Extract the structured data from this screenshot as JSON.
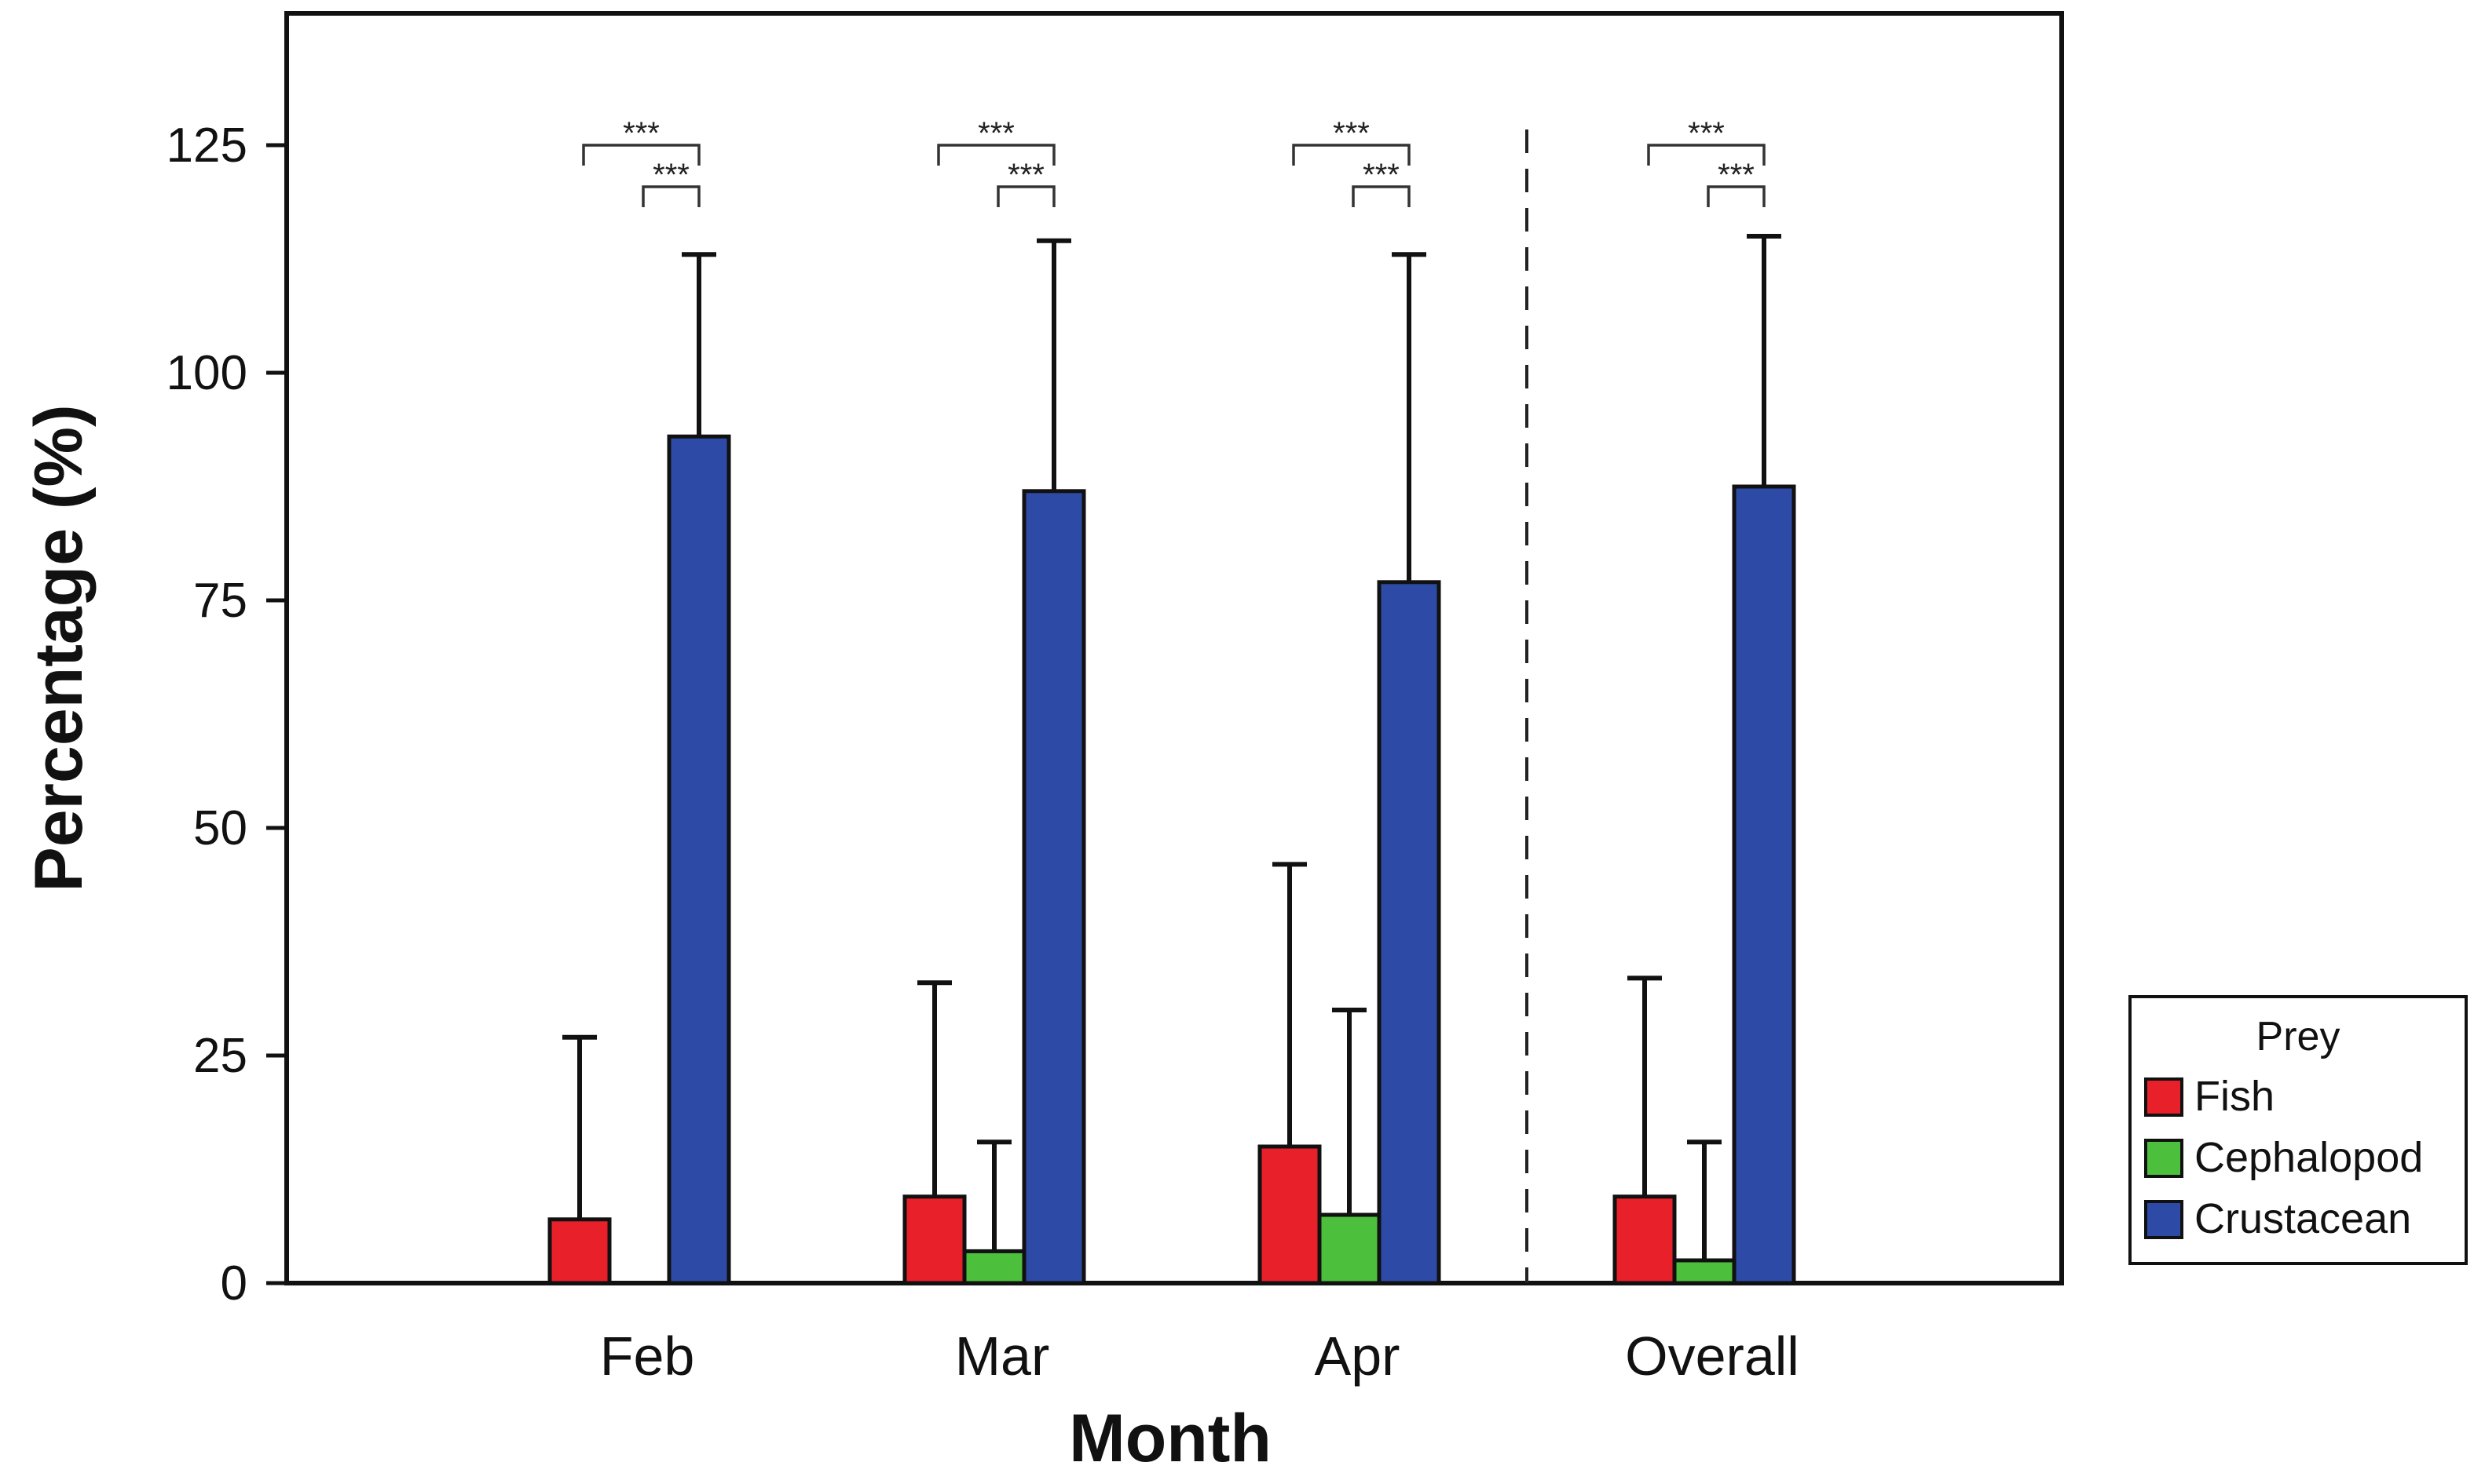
{
  "chart_data": {
    "type": "bar",
    "xlabel": "Month",
    "ylabel": "Percentage (%)",
    "ylim": [
      0,
      140
    ],
    "yticks": [
      "0",
      "25",
      "50",
      "75",
      "100",
      "125"
    ],
    "categories": [
      "Feb",
      "Mar",
      "Apr",
      "Overall"
    ],
    "series": [
      {
        "name": "Fish",
        "color": "#e8202a",
        "values": [
          7,
          9.5,
          15,
          9.5
        ],
        "error": [
          20,
          23.5,
          31,
          24
        ]
      },
      {
        "name": "Cephalopod",
        "color": "#4cc03c",
        "values": [
          0,
          3.5,
          7.5,
          2.5
        ],
        "error": [
          0,
          12,
          22.5,
          13
        ]
      },
      {
        "name": "Crustacean",
        "color": "#2d4ba6",
        "values": [
          93,
          87,
          77,
          87.5
        ],
        "error": [
          20,
          27.5,
          36,
          27.5
        ]
      }
    ],
    "significance": {
      "label": "***",
      "comparisons": [
        "Fish vs Crustacean",
        "Cephalopod vs Crustacean"
      ]
    },
    "separator_before": "Overall",
    "legend": {
      "title": "Prey",
      "placement": "right"
    },
    "grid": false
  }
}
